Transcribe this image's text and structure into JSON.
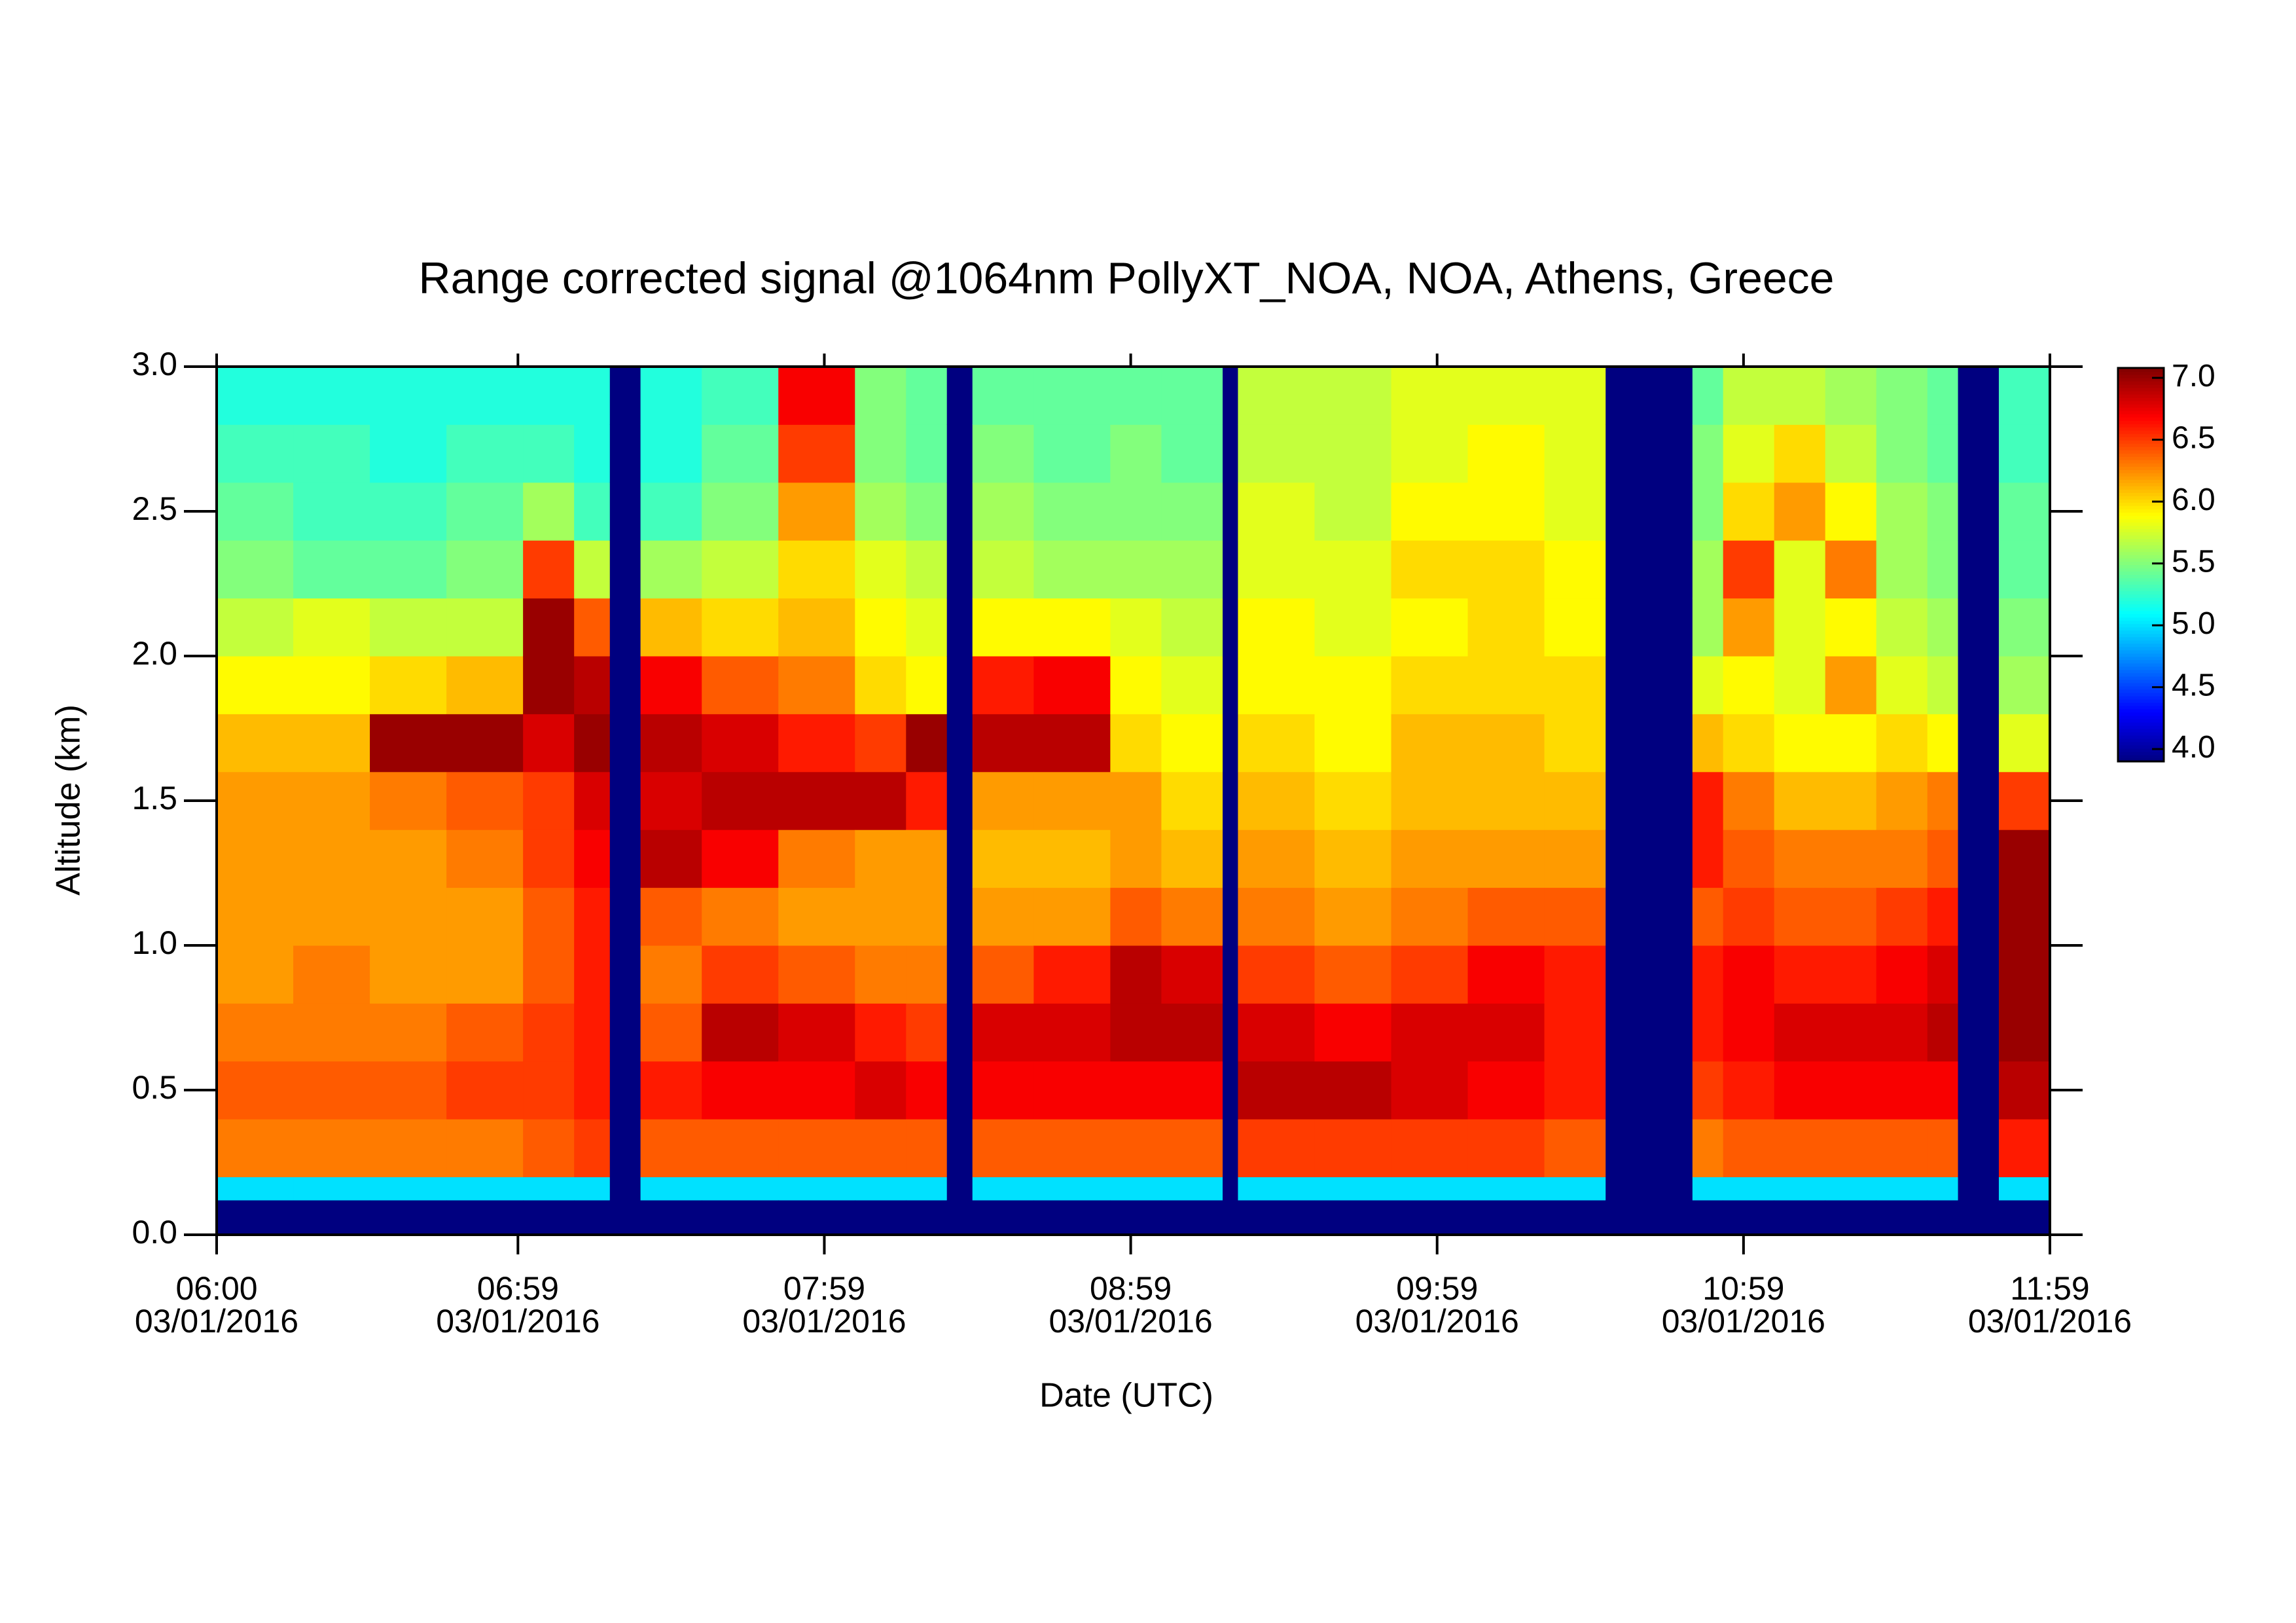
{
  "chart_data": {
    "type": "heatmap",
    "title": "Range corrected signal @1064nm  PollyXT_NOA, NOA, Athens, Greece",
    "xlabel": "Date (UTC)",
    "ylabel": "Altitude (km)",
    "xlim": [
      "06:00",
      "11:59"
    ],
    "xticks": [
      {
        "value": "06:00",
        "label": [
          "06:00",
          "03/01/2016"
        ]
      },
      {
        "value": "06:59",
        "label": [
          "06:59",
          "03/01/2016"
        ]
      },
      {
        "value": "07:59",
        "label": [
          "07:59",
          "03/01/2016"
        ]
      },
      {
        "value": "08:59",
        "label": [
          "08:59",
          "03/01/2016"
        ]
      },
      {
        "value": "09:59",
        "label": [
          "09:59",
          "03/01/2016"
        ]
      },
      {
        "value": "10:59",
        "label": [
          "10:59",
          "03/01/2016"
        ]
      },
      {
        "value": "11:59",
        "label": [
          "11:59",
          "03/01/2016"
        ]
      }
    ],
    "ylim": [
      0,
      3
    ],
    "yticks": [
      {
        "value": 0,
        "label": "0.0"
      },
      {
        "value": 0.5,
        "label": "0.5"
      },
      {
        "value": 1,
        "label": "1.0"
      },
      {
        "value": 1.5,
        "label": "1.5"
      },
      {
        "value": 2,
        "label": "2.0"
      },
      {
        "value": 2.5,
        "label": "2.5"
      },
      {
        "value": 3,
        "label": "3.0"
      }
    ],
    "zlim": [
      3.9,
      7.08
    ],
    "colorbar_ticks": [
      {
        "value": 4,
        "label": "4.0"
      },
      {
        "value": 4.5,
        "label": "4.5"
      },
      {
        "value": 5,
        "label": "5.0"
      },
      {
        "value": 5.5,
        "label": "5.5"
      },
      {
        "value": 6,
        "label": "6.0"
      },
      {
        "value": 6.5,
        "label": "6.5"
      },
      {
        "value": 7,
        "label": "7.0"
      }
    ],
    "colormap": "jet",
    "x": [
      "06:00",
      "06:15",
      "06:30",
      "06:45",
      "07:00",
      "07:10",
      "07:17",
      "07:23",
      "07:35",
      "07:50",
      "08:05",
      "08:15",
      "08:23",
      "08:28",
      "08:40",
      "08:55",
      "09:05",
      "09:17",
      "09:20",
      "09:35",
      "09:50",
      "10:05",
      "10:20",
      "10:32",
      "10:49",
      "10:55",
      "11:05",
      "11:15",
      "11:25",
      "11:35",
      "11:41",
      "11:49",
      "11:59"
    ],
    "y": [
      0,
      0.12,
      0.2,
      0.4,
      0.6,
      0.8,
      1.0,
      1.2,
      1.4,
      1.6,
      1.8,
      2.0,
      2.2,
      2.4,
      2.6,
      2.8,
      3.0
    ],
    "z": [
      [
        3.9,
        5.0,
        6.3,
        6.4,
        6.3,
        6.2,
        6.2,
        6.2,
        6.2,
        6.1,
        5.9,
        5.7,
        5.5,
        5.4,
        5.3,
        5.2
      ],
      [
        3.9,
        5.0,
        6.3,
        6.4,
        6.3,
        6.3,
        6.2,
        6.2,
        6.2,
        6.1,
        5.9,
        5.8,
        5.4,
        5.3,
        5.3,
        5.2
      ],
      [
        3.9,
        5.0,
        6.3,
        6.4,
        6.3,
        6.2,
        6.2,
        6.2,
        6.3,
        7.0,
        6.0,
        5.7,
        5.4,
        5.3,
        5.2,
        5.2
      ],
      [
        3.9,
        5.0,
        6.3,
        6.5,
        6.4,
        6.2,
        6.2,
        6.3,
        6.4,
        7.0,
        6.1,
        5.7,
        5.5,
        5.4,
        5.3,
        5.2
      ],
      [
        3.9,
        5.0,
        6.4,
        6.5,
        6.5,
        6.4,
        6.4,
        6.5,
        6.5,
        6.8,
        7.0,
        7.0,
        6.5,
        5.6,
        5.3,
        5.2
      ],
      [
        3.9,
        5.0,
        6.5,
        6.6,
        6.6,
        6.6,
        6.6,
        6.7,
        6.8,
        7.0,
        6.9,
        6.4,
        5.7,
        5.3,
        5.2,
        5.2
      ],
      [
        3.9,
        3.9,
        3.9,
        3.9,
        3.9,
        3.9,
        3.9,
        3.9,
        3.9,
        3.9,
        3.9,
        3.9,
        3.9,
        3.9,
        3.9,
        3.9
      ],
      [
        3.9,
        5.0,
        6.4,
        6.6,
        6.4,
        6.3,
        6.4,
        6.9,
        6.8,
        6.9,
        6.7,
        6.1,
        5.6,
        5.3,
        5.2,
        5.2
      ],
      [
        3.9,
        5.0,
        6.4,
        6.7,
        6.9,
        6.5,
        6.3,
        6.7,
        6.9,
        6.8,
        6.4,
        6.0,
        5.7,
        5.5,
        5.4,
        5.3
      ],
      [
        3.9,
        5.0,
        6.4,
        6.7,
        6.8,
        6.4,
        6.2,
        6.3,
        6.9,
        6.6,
        6.3,
        6.1,
        6.0,
        6.2,
        6.5,
        6.7
      ],
      [
        3.9,
        5.0,
        6.4,
        6.8,
        6.6,
        6.3,
        6.2,
        6.2,
        6.9,
        6.5,
        6.0,
        5.9,
        5.8,
        5.6,
        5.5,
        5.5
      ],
      [
        3.9,
        5.0,
        6.4,
        6.7,
        6.5,
        6.3,
        6.2,
        6.2,
        6.6,
        7.0,
        5.9,
        5.8,
        5.7,
        5.5,
        5.4,
        5.4
      ],
      [
        3.9,
        3.9,
        3.9,
        3.9,
        3.9,
        3.9,
        3.9,
        3.9,
        3.9,
        3.9,
        3.9,
        3.9,
        3.9,
        3.9,
        3.9,
        3.9
      ],
      [
        3.9,
        5.0,
        6.4,
        6.7,
        6.8,
        6.4,
        6.2,
        6.1,
        6.2,
        6.9,
        6.6,
        5.9,
        5.7,
        5.6,
        5.5,
        5.4
      ],
      [
        3.9,
        5.0,
        6.4,
        6.7,
        6.8,
        6.6,
        6.2,
        6.1,
        6.2,
        6.9,
        6.7,
        5.9,
        5.6,
        5.5,
        5.4,
        5.4
      ],
      [
        3.9,
        5.0,
        6.4,
        6.7,
        6.9,
        6.9,
        6.4,
        6.2,
        6.2,
        6.0,
        5.9,
        5.8,
        5.6,
        5.5,
        5.5,
        5.4
      ],
      [
        3.9,
        5.0,
        6.4,
        6.7,
        6.9,
        6.8,
        6.3,
        6.1,
        6.0,
        5.9,
        5.8,
        5.7,
        5.6,
        5.5,
        5.4,
        5.4
      ],
      [
        3.9,
        3.9,
        3.9,
        3.9,
        3.9,
        3.9,
        3.9,
        3.9,
        3.9,
        3.9,
        3.9,
        3.9,
        3.9,
        3.9,
        3.9,
        3.9
      ],
      [
        3.9,
        5.0,
        6.5,
        6.9,
        6.8,
        6.5,
        6.3,
        6.2,
        6.1,
        6.0,
        5.9,
        5.9,
        5.8,
        5.8,
        5.7,
        5.7
      ],
      [
        3.9,
        5.0,
        6.5,
        6.9,
        6.7,
        6.4,
        6.2,
        6.1,
        6.0,
        5.9,
        5.9,
        5.8,
        5.8,
        5.7,
        5.7,
        5.7
      ],
      [
        3.9,
        5.0,
        6.5,
        6.8,
        6.8,
        6.5,
        6.3,
        6.2,
        6.1,
        6.1,
        6.0,
        5.9,
        6.0,
        5.9,
        5.8,
        5.8
      ],
      [
        3.9,
        5.0,
        6.5,
        6.7,
        6.8,
        6.7,
        6.4,
        6.2,
        6.1,
        6.1,
        6.0,
        6.0,
        6.0,
        5.9,
        5.9,
        5.8
      ],
      [
        3.9,
        5.0,
        6.4,
        6.6,
        6.6,
        6.6,
        6.4,
        6.2,
        6.1,
        6.0,
        6.0,
        5.9,
        5.9,
        5.8,
        5.8,
        5.8
      ],
      [
        3.9,
        3.9,
        3.9,
        3.9,
        3.9,
        3.9,
        3.9,
        3.9,
        3.9,
        3.9,
        3.9,
        3.9,
        3.9,
        3.9,
        3.9,
        3.9
      ],
      [
        3.9,
        5.0,
        6.3,
        6.5,
        6.6,
        6.6,
        6.4,
        6.6,
        6.6,
        6.1,
        5.8,
        5.6,
        5.6,
        5.5,
        5.5,
        5.4
      ],
      [
        3.9,
        5.0,
        6.4,
        6.6,
        6.7,
        6.7,
        6.5,
        6.4,
        6.3,
        6.0,
        5.9,
        6.2,
        6.5,
        6.0,
        5.8,
        5.7
      ],
      [
        3.9,
        5.0,
        6.4,
        6.7,
        6.8,
        6.6,
        6.4,
        6.3,
        6.1,
        5.9,
        5.8,
        5.8,
        5.8,
        6.2,
        6.0,
        5.7
      ],
      [
        3.9,
        5.0,
        6.4,
        6.7,
        6.8,
        6.6,
        6.4,
        6.3,
        6.1,
        5.9,
        6.2,
        5.9,
        6.3,
        5.9,
        5.7,
        5.6
      ],
      [
        3.9,
        5.0,
        6.4,
        6.7,
        6.8,
        6.7,
        6.5,
        6.3,
        6.2,
        6.0,
        5.8,
        5.7,
        5.6,
        5.6,
        5.5,
        5.5
      ],
      [
        3.9,
        5.0,
        6.4,
        6.7,
        6.9,
        6.8,
        6.6,
        6.4,
        6.3,
        5.9,
        5.7,
        5.6,
        5.5,
        5.5,
        5.4,
        5.4
      ],
      [
        3.9,
        3.9,
        3.9,
        3.9,
        3.9,
        3.9,
        3.9,
        3.9,
        3.9,
        3.9,
        3.9,
        3.9,
        3.9,
        3.9,
        3.9,
        3.9
      ],
      [
        3.9,
        5.0,
        6.6,
        6.9,
        7.0,
        7.0,
        7.0,
        7.0,
        6.5,
        5.8,
        5.6,
        5.5,
        5.4,
        5.4,
        5.3,
        5.3
      ]
    ]
  }
}
